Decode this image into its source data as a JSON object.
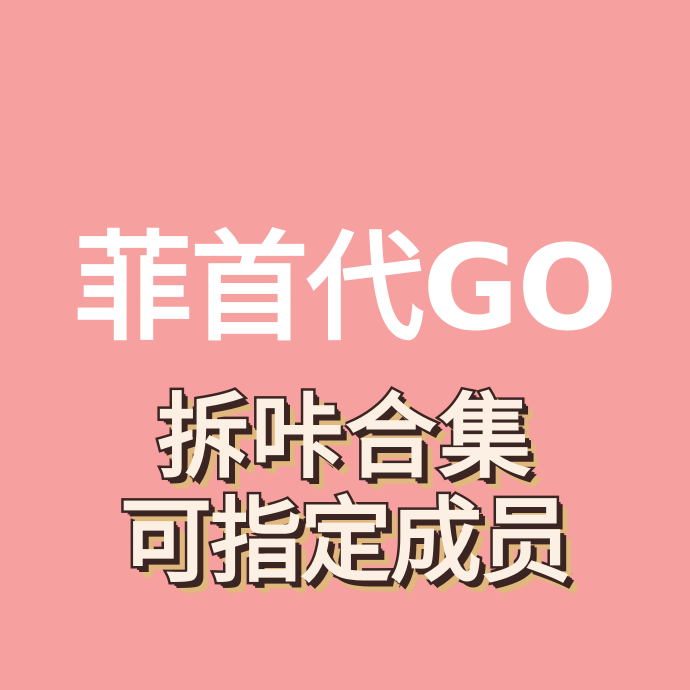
{
  "poster": {
    "headline": "菲首代GO",
    "subline_1": "拆咔合集",
    "subline_2": "可指定成员"
  },
  "colors": {
    "background": "#F7A0A0",
    "headline_text": "#FFFFFF",
    "subline_fill": "#FCEFE3",
    "subline_outline": "#3A2522",
    "subline_shadow": "#E0B77C"
  }
}
